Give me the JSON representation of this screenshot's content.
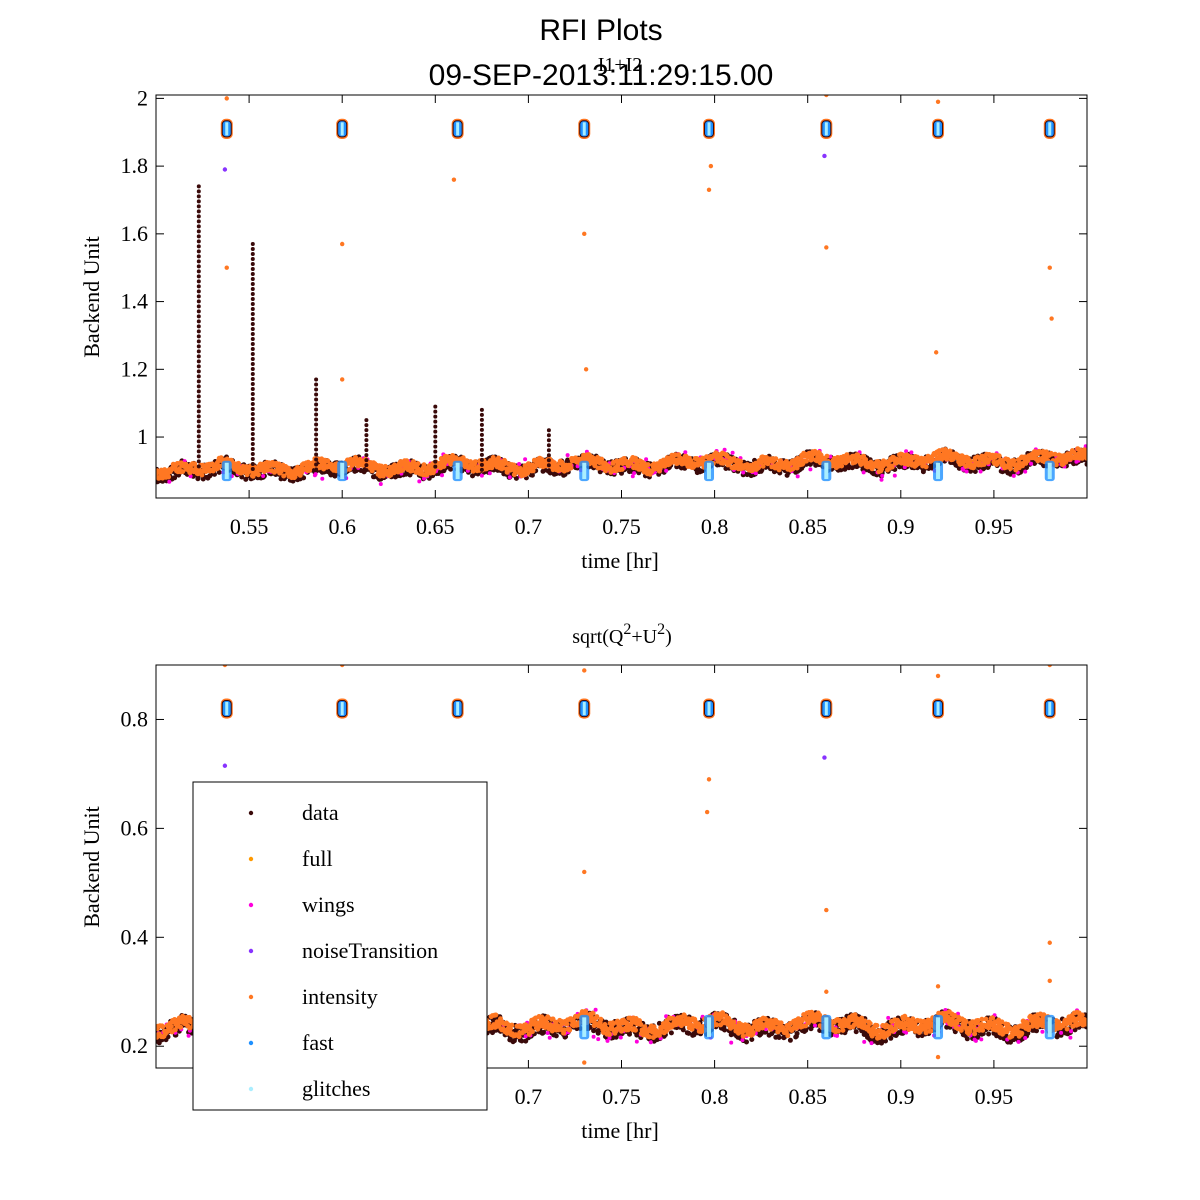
{
  "figure": {
    "title_line1": "RFI Plots",
    "title_line2": "09-SEP-2013:11:29:15.00"
  },
  "chart_data": [
    {
      "type": "scatter",
      "title": "I1+I2",
      "xlabel": "time [hr]",
      "ylabel": "Backend Unit",
      "xlim": [
        0.5,
        1.0
      ],
      "ylim": [
        0.82,
        2.01
      ],
      "xticks": [
        0.55,
        0.6,
        0.65,
        0.7,
        0.75,
        0.8,
        0.85,
        0.9,
        0.95
      ],
      "xtick_labels": [
        "0.55",
        "0.6",
        "0.65",
        "0.7",
        "0.75",
        "0.8",
        "0.85",
        "0.9",
        "0.95"
      ],
      "yticks": [
        1.0,
        1.2,
        1.4,
        1.6,
        1.8,
        2.0
      ],
      "ytick_labels": [
        "1",
        "1.2",
        "1.4",
        "1.6",
        "1.8",
        "2"
      ],
      "baseline": 0.9,
      "noise_cal_times": [
        0.538,
        0.6,
        0.662,
        0.73,
        0.797,
        0.86,
        0.92,
        0.98
      ],
      "noise_cal_level": 1.91,
      "data_spikes": [
        {
          "x": 0.523,
          "y": 1.74
        },
        {
          "x": 0.552,
          "y": 1.57
        },
        {
          "x": 0.586,
          "y": 1.17
        },
        {
          "x": 0.613,
          "y": 1.05
        },
        {
          "x": 0.65,
          "y": 1.09
        },
        {
          "x": 0.675,
          "y": 1.08
        },
        {
          "x": 0.711,
          "y": 1.02
        }
      ],
      "intensity_outliers": [
        {
          "x": 0.538,
          "y": 1.5
        },
        {
          "x": 0.538,
          "y": 2.0
        },
        {
          "x": 0.6,
          "y": 1.57
        },
        {
          "x": 0.6,
          "y": 1.17
        },
        {
          "x": 0.66,
          "y": 1.76
        },
        {
          "x": 0.73,
          "y": 1.6
        },
        {
          "x": 0.731,
          "y": 1.2
        },
        {
          "x": 0.797,
          "y": 1.73
        },
        {
          "x": 0.798,
          "y": 1.8
        },
        {
          "x": 0.86,
          "y": 1.56
        },
        {
          "x": 0.919,
          "y": 1.25
        },
        {
          "x": 0.98,
          "y": 1.5
        },
        {
          "x": 0.981,
          "y": 1.35
        },
        {
          "x": 0.86,
          "y": 2.01
        },
        {
          "x": 0.92,
          "y": 1.99
        }
      ],
      "noise_transition_outliers": [
        {
          "x": 0.537,
          "y": 1.79
        },
        {
          "x": 0.859,
          "y": 1.83
        }
      ]
    },
    {
      "type": "scatter",
      "title": "sqrt(Q²+U²)",
      "title_base": "sqrt(Q",
      "title_sup1": "2",
      "title_mid": "+U",
      "title_sup2": "2",
      "title_end": ")",
      "xlabel": "time [hr]",
      "ylabel": "Backend Unit",
      "xlim": [
        0.5,
        1.0
      ],
      "ylim": [
        0.16,
        0.9
      ],
      "xticks": [
        0.7,
        0.75,
        0.8,
        0.85,
        0.9,
        0.95
      ],
      "xtick_labels": [
        "0.7",
        "0.75",
        "0.8",
        "0.85",
        "0.9",
        "0.95"
      ],
      "yticks": [
        0.2,
        0.4,
        0.6,
        0.8
      ],
      "ytick_labels": [
        "0.2",
        "0.4",
        "0.6",
        "0.8"
      ],
      "baseline": 0.235,
      "noise_cal_times": [
        0.538,
        0.6,
        0.662,
        0.73,
        0.797,
        0.86,
        0.92,
        0.98
      ],
      "noise_cal_level": 0.82,
      "intensity_outliers": [
        {
          "x": 0.537,
          "y": 0.9
        },
        {
          "x": 0.6,
          "y": 0.9
        },
        {
          "x": 0.73,
          "y": 0.89
        },
        {
          "x": 0.73,
          "y": 0.52
        },
        {
          "x": 0.797,
          "y": 0.69
        },
        {
          "x": 0.796,
          "y": 0.63
        },
        {
          "x": 0.86,
          "y": 0.45
        },
        {
          "x": 0.86,
          "y": 0.3
        },
        {
          "x": 0.98,
          "y": 0.39
        },
        {
          "x": 0.98,
          "y": 0.32
        },
        {
          "x": 0.92,
          "y": 0.88
        },
        {
          "x": 0.92,
          "y": 0.31
        },
        {
          "x": 0.98,
          "y": 0.9
        },
        {
          "x": 0.73,
          "y": 0.17
        },
        {
          "x": 0.92,
          "y": 0.18
        }
      ],
      "noise_transition_outliers": [
        {
          "x": 0.537,
          "y": 0.715
        },
        {
          "x": 0.859,
          "y": 0.73
        }
      ]
    }
  ],
  "legend": {
    "placement": "lower-left of bottom panel",
    "entries": [
      {
        "label": "data",
        "color": "#3a0a0a"
      },
      {
        "label": "full",
        "color": "#ff9900"
      },
      {
        "label": "wings",
        "color": "#ff00dd"
      },
      {
        "label": "noiseTransition",
        "color": "#8833ff"
      },
      {
        "label": "intensity",
        "color": "#ff7722"
      },
      {
        "label": "fast",
        "color": "#1e90ff"
      },
      {
        "label": "glitches",
        "color": "#aaeeff"
      }
    ]
  },
  "colors": {
    "data": "#3a0a0a",
    "full": "#ff9900",
    "wings": "#ff00dd",
    "noiseTransition": "#8833ff",
    "intensity": "#ff7722",
    "fast": "#1e90ff",
    "glitches": "#aaeeff"
  }
}
